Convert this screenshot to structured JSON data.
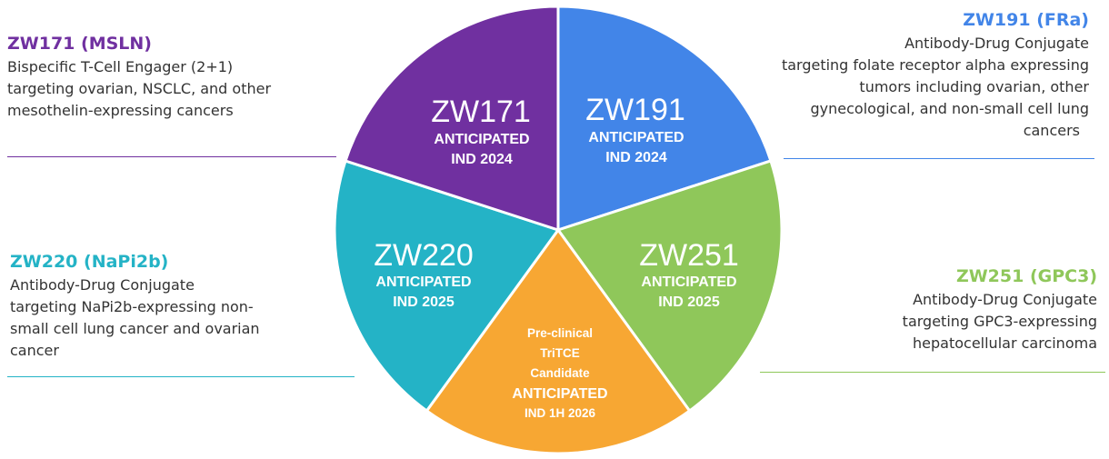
{
  "colors": {
    "purple": "#7030a0",
    "blue": "#4285e8",
    "green": "#8fc75a",
    "orange": "#f7a733",
    "teal": "#24b3c6"
  },
  "segments": [
    {
      "id": "zw191",
      "color": "#4285e8",
      "name": "ZW191",
      "line1": "ANTICIPATED",
      "line2": "IND 2024"
    },
    {
      "id": "zw251",
      "color": "#8fc75a",
      "name": "ZW251",
      "line1": "ANTICIPATED",
      "line2": "IND 2025"
    },
    {
      "id": "tritce",
      "color": "#f7a733",
      "small1": "Pre-clinical",
      "small2": "TriTCE",
      "small3": "Candidate",
      "line1": "ANTICIPATED",
      "line2": "IND 1H 2026"
    },
    {
      "id": "zw220",
      "color": "#24b3c6",
      "name": "ZW220",
      "line1": "ANTICIPATED",
      "line2": "IND 2025"
    },
    {
      "id": "zw171",
      "color": "#7030a0",
      "name": "ZW171",
      "line1": "ANTICIPATED",
      "line2": "IND 2024"
    }
  ],
  "callouts": {
    "zw171": {
      "title": "ZW171 (MSLN)",
      "lines": [
        "Bispecific T-Cell Engager (2+1)",
        "targeting ovarian, NSCLC, and other",
        "mesothelin-expressing cancers"
      ]
    },
    "zw191": {
      "title": "ZW191 (FRa)",
      "lines": [
        "Antibody-Drug Conjugate",
        "targeting folate receptor alpha expressing",
        "tumors including ovarian, other",
        "gynecological, and non-small cell lung",
        "cancers"
      ]
    },
    "zw220": {
      "title": "ZW220 (NaPi2b)",
      "lines": [
        "Antibody-Drug Conjugate",
        "targeting NaPi2b-expressing non-",
        "small cell lung cancer and ovarian",
        "cancer"
      ]
    },
    "zw251": {
      "title": "ZW251 (GPC3)",
      "lines": [
        "Antibody-Drug Conjugate",
        "targeting GPC3-expressing",
        "hepatocellular carcinoma"
      ]
    }
  }
}
